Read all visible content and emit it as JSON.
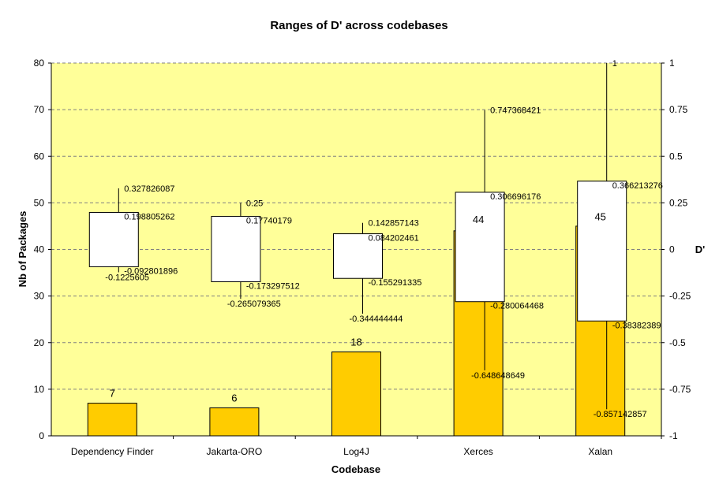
{
  "chart_data": {
    "type": "bar",
    "title": "Ranges of D' across codebases",
    "xlabel": "Codebase",
    "ylabel": "Nb of Packages",
    "y2label": "D'",
    "ylim": [
      0,
      80
    ],
    "y2lim": [
      -1,
      1
    ],
    "yticks": [
      "0",
      "10",
      "20",
      "30",
      "40",
      "50",
      "60",
      "70",
      "80"
    ],
    "y2ticks": [
      "-1",
      "-0.75",
      "-0.5",
      "-0.25",
      "0",
      "0.25",
      "0.5",
      "0.75",
      "1"
    ],
    "grid": true,
    "colors": {
      "plot_bg": "#ffff99",
      "bar": "#ffcc00",
      "box": "#ffffff",
      "line": "#000000",
      "grid": "#808080"
    },
    "categories": [
      "Dependency Finder",
      "Jakarta-ORO",
      "Log4J",
      "Xerces",
      "Xalan"
    ],
    "series": [
      {
        "values": [
          7,
          6,
          18,
          44,
          45
        ],
        "value_labels": [
          "7",
          "6",
          "18",
          "44",
          "45"
        ]
      }
    ],
    "ranges": [
      {
        "max": 0.327826087,
        "q3": 0.198805262,
        "q1": -0.092801896,
        "min": -0.1225605,
        "labels": {
          "max": "0.327826087",
          "q3": "0.198805262",
          "q1": "-0.092801896",
          "min": "-0.1225605"
        }
      },
      {
        "max": 0.25,
        "q3": 0.17740179,
        "q1": -0.173297512,
        "min": -0.265079365,
        "labels": {
          "max": "0.25",
          "q3": "0.17740179",
          "q1": "-0.173297512",
          "min": "-0.265079365"
        }
      },
      {
        "max": 0.142857143,
        "q3": 0.084202461,
        "q1": -0.155291335,
        "min": -0.344444444,
        "labels": {
          "max": "0.142857143",
          "q3": "0.084202461",
          "q1": "-0.155291335",
          "min": "-0.344444444"
        }
      },
      {
        "max": 0.747368421,
        "q3": 0.306696176,
        "q1": -0.280064468,
        "min": -0.648648649,
        "labels": {
          "max": "0.747368421",
          "q3": "0.306696176",
          "q1": "-0.280064468",
          "min": "-0.648648649"
        }
      },
      {
        "max": 1,
        "q3": 0.366213276,
        "q1": -0.38382389,
        "min": -0.857142857,
        "labels": {
          "max": "1",
          "q3": "0.366213276",
          "q1": "-0.38382389",
          "min": "-0.857142857"
        }
      }
    ]
  }
}
